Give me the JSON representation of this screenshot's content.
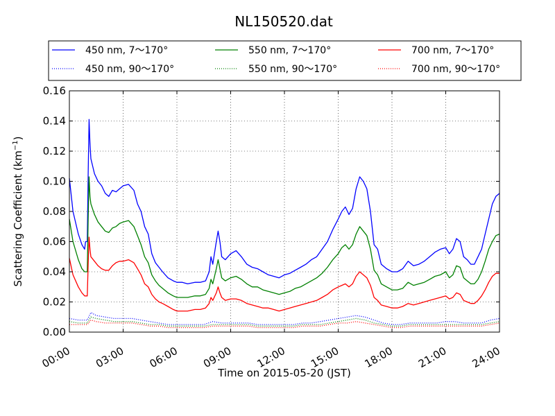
{
  "chart_data": {
    "type": "line",
    "title": "NL150520.dat",
    "xlabel": "Time on 2015-05-20 (JST)",
    "ylabel_main": "Scattering Coefficient (km",
    "ylabel_sup": "−1",
    "ylabel_close": ")",
    "xlim": [
      0,
      24
    ],
    "ylim": [
      0,
      0.16
    ],
    "x_ticks": [
      0,
      3,
      6,
      9,
      12,
      15,
      18,
      21,
      24
    ],
    "x_tick_labels": [
      "00:00",
      "03:00",
      "06:00",
      "09:00",
      "12:00",
      "15:00",
      "18:00",
      "21:00",
      "24:00"
    ],
    "y_ticks": [
      0,
      0.02,
      0.04,
      0.06,
      0.08,
      0.1,
      0.12,
      0.14,
      0.16
    ],
    "y_tick_labels": [
      "0.00",
      "0.02",
      "0.04",
      "0.06",
      "0.08",
      "0.10",
      "0.12",
      "0.14",
      "0.16"
    ],
    "grid": true,
    "legend_position": "top",
    "x_unit": "hours",
    "series": [
      {
        "name": "450 nm, 7～170°",
        "color": "#0000ff",
        "style": "solid",
        "x": [
          0.0,
          0.2,
          0.5,
          0.7,
          0.85,
          0.9,
          1.0,
          1.05,
          1.1,
          1.15,
          1.2,
          1.4,
          1.6,
          1.8,
          2.0,
          2.2,
          2.4,
          2.6,
          2.8,
          3.0,
          3.3,
          3.6,
          3.8,
          4.0,
          4.2,
          4.4,
          4.6,
          4.8,
          5.0,
          5.2,
          5.5,
          5.8,
          6.0,
          6.3,
          6.6,
          7.0,
          7.3,
          7.6,
          7.8,
          7.9,
          8.0,
          8.2,
          8.3,
          8.4,
          8.5,
          8.7,
          9.0,
          9.3,
          9.6,
          9.9,
          10.2,
          10.5,
          10.8,
          11.1,
          11.4,
          11.7,
          12.0,
          12.3,
          12.6,
          12.9,
          13.2,
          13.5,
          13.8,
          14.1,
          14.4,
          14.7,
          15.0,
          15.2,
          15.4,
          15.6,
          15.8,
          16.0,
          16.2,
          16.4,
          16.6,
          16.8,
          17.0,
          17.2,
          17.4,
          17.7,
          18.0,
          18.3,
          18.6,
          18.9,
          19.2,
          19.5,
          19.8,
          20.1,
          20.4,
          20.7,
          21.0,
          21.2,
          21.4,
          21.6,
          21.8,
          22.0,
          22.2,
          22.4,
          22.6,
          22.8,
          23.0,
          23.2,
          23.4,
          23.6,
          23.8,
          24.0
        ],
        "y": [
          0.102,
          0.08,
          0.065,
          0.058,
          0.055,
          0.06,
          0.06,
          0.105,
          0.141,
          0.125,
          0.115,
          0.105,
          0.1,
          0.097,
          0.092,
          0.09,
          0.094,
          0.093,
          0.095,
          0.097,
          0.098,
          0.094,
          0.085,
          0.08,
          0.07,
          0.065,
          0.052,
          0.046,
          0.043,
          0.04,
          0.036,
          0.034,
          0.033,
          0.033,
          0.032,
          0.033,
          0.033,
          0.034,
          0.04,
          0.05,
          0.045,
          0.06,
          0.067,
          0.06,
          0.05,
          0.048,
          0.052,
          0.054,
          0.05,
          0.045,
          0.043,
          0.042,
          0.04,
          0.038,
          0.037,
          0.036,
          0.038,
          0.039,
          0.041,
          0.043,
          0.045,
          0.048,
          0.05,
          0.055,
          0.06,
          0.068,
          0.075,
          0.08,
          0.083,
          0.078,
          0.082,
          0.095,
          0.103,
          0.1,
          0.095,
          0.08,
          0.058,
          0.055,
          0.045,
          0.042,
          0.04,
          0.04,
          0.042,
          0.047,
          0.044,
          0.045,
          0.047,
          0.05,
          0.053,
          0.055,
          0.056,
          0.052,
          0.055,
          0.062,
          0.06,
          0.05,
          0.048,
          0.045,
          0.045,
          0.05,
          0.055,
          0.065,
          0.075,
          0.085,
          0.09,
          0.092
        ]
      },
      {
        "name": "550 nm, 7～170°",
        "color": "#008000",
        "style": "solid",
        "x": [
          0.0,
          0.2,
          0.5,
          0.7,
          0.85,
          0.9,
          1.0,
          1.05,
          1.1,
          1.15,
          1.2,
          1.4,
          1.6,
          1.8,
          2.0,
          2.2,
          2.4,
          2.6,
          2.8,
          3.0,
          3.3,
          3.6,
          3.8,
          4.0,
          4.2,
          4.4,
          4.6,
          4.8,
          5.0,
          5.2,
          5.5,
          5.8,
          6.0,
          6.3,
          6.6,
          7.0,
          7.3,
          7.6,
          7.8,
          7.9,
          8.0,
          8.2,
          8.3,
          8.4,
          8.5,
          8.7,
          9.0,
          9.3,
          9.6,
          9.9,
          10.2,
          10.5,
          10.8,
          11.1,
          11.4,
          11.7,
          12.0,
          12.3,
          12.6,
          12.9,
          13.2,
          13.5,
          13.8,
          14.1,
          14.4,
          14.7,
          15.0,
          15.2,
          15.4,
          15.6,
          15.8,
          16.0,
          16.2,
          16.4,
          16.6,
          16.8,
          17.0,
          17.2,
          17.4,
          17.7,
          18.0,
          18.3,
          18.6,
          18.9,
          19.2,
          19.5,
          19.8,
          20.1,
          20.4,
          20.7,
          21.0,
          21.2,
          21.4,
          21.6,
          21.8,
          22.0,
          22.2,
          22.4,
          22.6,
          22.8,
          23.0,
          23.2,
          23.4,
          23.6,
          23.8,
          24.0
        ],
        "y": [
          0.075,
          0.06,
          0.048,
          0.042,
          0.04,
          0.04,
          0.04,
          0.075,
          0.103,
          0.09,
          0.085,
          0.078,
          0.073,
          0.07,
          0.067,
          0.066,
          0.069,
          0.07,
          0.072,
          0.073,
          0.074,
          0.07,
          0.064,
          0.058,
          0.05,
          0.046,
          0.038,
          0.034,
          0.031,
          0.029,
          0.026,
          0.024,
          0.023,
          0.023,
          0.023,
          0.024,
          0.024,
          0.025,
          0.029,
          0.035,
          0.032,
          0.042,
          0.048,
          0.042,
          0.036,
          0.034,
          0.036,
          0.037,
          0.035,
          0.032,
          0.03,
          0.03,
          0.028,
          0.027,
          0.026,
          0.025,
          0.026,
          0.027,
          0.029,
          0.03,
          0.032,
          0.034,
          0.036,
          0.039,
          0.043,
          0.048,
          0.052,
          0.056,
          0.058,
          0.055,
          0.058,
          0.065,
          0.07,
          0.067,
          0.064,
          0.055,
          0.041,
          0.038,
          0.032,
          0.03,
          0.028,
          0.028,
          0.029,
          0.033,
          0.031,
          0.032,
          0.033,
          0.035,
          0.037,
          0.038,
          0.04,
          0.036,
          0.038,
          0.044,
          0.043,
          0.036,
          0.034,
          0.032,
          0.032,
          0.035,
          0.04,
          0.047,
          0.055,
          0.06,
          0.064,
          0.065
        ]
      },
      {
        "name": "700 nm, 7～170°",
        "color": "#ff0000",
        "style": "solid",
        "x": [
          0.0,
          0.2,
          0.5,
          0.7,
          0.85,
          0.9,
          1.0,
          1.05,
          1.1,
          1.15,
          1.2,
          1.4,
          1.6,
          1.8,
          2.0,
          2.2,
          2.4,
          2.6,
          2.8,
          3.0,
          3.3,
          3.6,
          3.8,
          4.0,
          4.2,
          4.4,
          4.6,
          4.8,
          5.0,
          5.2,
          5.5,
          5.8,
          6.0,
          6.3,
          6.6,
          7.0,
          7.3,
          7.6,
          7.8,
          7.9,
          8.0,
          8.2,
          8.3,
          8.4,
          8.5,
          8.7,
          9.0,
          9.3,
          9.6,
          9.9,
          10.2,
          10.5,
          10.8,
          11.1,
          11.4,
          11.7,
          12.0,
          12.3,
          12.6,
          12.9,
          13.2,
          13.5,
          13.8,
          14.1,
          14.4,
          14.7,
          15.0,
          15.2,
          15.4,
          15.6,
          15.8,
          16.0,
          16.2,
          16.4,
          16.6,
          16.8,
          17.0,
          17.2,
          17.4,
          17.7,
          18.0,
          18.3,
          18.6,
          18.9,
          19.2,
          19.5,
          19.8,
          20.1,
          20.4,
          20.7,
          21.0,
          21.2,
          21.4,
          21.6,
          21.8,
          22.0,
          22.2,
          22.4,
          22.6,
          22.8,
          23.0,
          23.2,
          23.4,
          23.6,
          23.8,
          24.0
        ],
        "y": [
          0.049,
          0.038,
          0.03,
          0.026,
          0.024,
          0.024,
          0.024,
          0.045,
          0.063,
          0.055,
          0.05,
          0.047,
          0.044,
          0.042,
          0.041,
          0.041,
          0.044,
          0.046,
          0.047,
          0.047,
          0.048,
          0.046,
          0.042,
          0.038,
          0.032,
          0.03,
          0.025,
          0.022,
          0.02,
          0.019,
          0.017,
          0.015,
          0.014,
          0.014,
          0.014,
          0.015,
          0.015,
          0.016,
          0.019,
          0.023,
          0.021,
          0.026,
          0.03,
          0.026,
          0.023,
          0.021,
          0.022,
          0.022,
          0.021,
          0.019,
          0.018,
          0.017,
          0.016,
          0.016,
          0.015,
          0.014,
          0.015,
          0.016,
          0.017,
          0.018,
          0.019,
          0.02,
          0.021,
          0.023,
          0.025,
          0.028,
          0.03,
          0.031,
          0.032,
          0.03,
          0.032,
          0.037,
          0.04,
          0.038,
          0.036,
          0.031,
          0.023,
          0.021,
          0.018,
          0.017,
          0.016,
          0.016,
          0.017,
          0.019,
          0.018,
          0.019,
          0.02,
          0.021,
          0.022,
          0.023,
          0.024,
          0.022,
          0.023,
          0.026,
          0.025,
          0.021,
          0.02,
          0.019,
          0.019,
          0.021,
          0.024,
          0.028,
          0.033,
          0.037,
          0.039,
          0.039
        ]
      },
      {
        "name": "450 nm, 90～170°",
        "color": "#0000ff",
        "style": "dotted",
        "x": [
          0.0,
          0.5,
          1.0,
          1.2,
          1.5,
          2.0,
          2.5,
          3.0,
          3.5,
          4.0,
          4.5,
          5.0,
          5.5,
          6.0,
          6.5,
          7.0,
          7.5,
          8.0,
          8.5,
          9.0,
          9.5,
          10.0,
          10.5,
          11.0,
          11.5,
          12.0,
          12.5,
          13.0,
          13.5,
          14.0,
          14.5,
          15.0,
          15.5,
          16.0,
          16.5,
          17.0,
          17.5,
          18.0,
          18.5,
          19.0,
          19.5,
          20.0,
          20.5,
          21.0,
          21.5,
          22.0,
          22.5,
          23.0,
          23.5,
          24.0
        ],
        "y": [
          0.009,
          0.008,
          0.008,
          0.013,
          0.011,
          0.01,
          0.009,
          0.009,
          0.009,
          0.008,
          0.007,
          0.006,
          0.005,
          0.005,
          0.005,
          0.005,
          0.005,
          0.007,
          0.006,
          0.006,
          0.006,
          0.006,
          0.005,
          0.005,
          0.005,
          0.005,
          0.005,
          0.006,
          0.006,
          0.007,
          0.008,
          0.009,
          0.01,
          0.011,
          0.01,
          0.008,
          0.006,
          0.005,
          0.005,
          0.006,
          0.006,
          0.006,
          0.006,
          0.007,
          0.007,
          0.006,
          0.006,
          0.006,
          0.008,
          0.009
        ]
      },
      {
        "name": "550 nm, 90～170°",
        "color": "#008000",
        "style": "dotted",
        "x": [
          0.0,
          0.5,
          1.0,
          1.2,
          1.5,
          2.0,
          2.5,
          3.0,
          3.5,
          4.0,
          4.5,
          5.0,
          5.5,
          6.0,
          6.5,
          7.0,
          7.5,
          8.0,
          8.5,
          9.0,
          9.5,
          10.0,
          10.5,
          11.0,
          11.5,
          12.0,
          12.5,
          13.0,
          13.5,
          14.0,
          14.5,
          15.0,
          15.5,
          16.0,
          16.5,
          17.0,
          17.5,
          18.0,
          18.5,
          19.0,
          19.5,
          20.0,
          20.5,
          21.0,
          21.5,
          22.0,
          22.5,
          23.0,
          23.5,
          24.0
        ],
        "y": [
          0.007,
          0.006,
          0.006,
          0.01,
          0.009,
          0.008,
          0.007,
          0.007,
          0.007,
          0.006,
          0.005,
          0.005,
          0.004,
          0.004,
          0.004,
          0.004,
          0.004,
          0.005,
          0.005,
          0.005,
          0.005,
          0.005,
          0.004,
          0.004,
          0.004,
          0.004,
          0.004,
          0.005,
          0.005,
          0.005,
          0.006,
          0.007,
          0.008,
          0.009,
          0.008,
          0.006,
          0.005,
          0.004,
          0.004,
          0.005,
          0.005,
          0.005,
          0.005,
          0.005,
          0.005,
          0.005,
          0.005,
          0.005,
          0.006,
          0.007
        ]
      },
      {
        "name": "700 nm, 90～170°",
        "color": "#ff0000",
        "style": "dotted",
        "x": [
          0.0,
          0.5,
          1.0,
          1.2,
          1.5,
          2.0,
          2.5,
          3.0,
          3.5,
          4.0,
          4.5,
          5.0,
          5.5,
          6.0,
          6.5,
          7.0,
          7.5,
          8.0,
          8.5,
          9.0,
          9.5,
          10.0,
          10.5,
          11.0,
          11.5,
          12.0,
          12.5,
          13.0,
          13.5,
          14.0,
          14.5,
          15.0,
          15.5,
          16.0,
          16.5,
          17.0,
          17.5,
          18.0,
          18.5,
          19.0,
          19.5,
          20.0,
          20.5,
          21.0,
          21.5,
          22.0,
          22.5,
          23.0,
          23.5,
          24.0
        ],
        "y": [
          0.005,
          0.005,
          0.005,
          0.008,
          0.007,
          0.006,
          0.006,
          0.006,
          0.006,
          0.005,
          0.004,
          0.004,
          0.003,
          0.003,
          0.003,
          0.003,
          0.003,
          0.004,
          0.004,
          0.004,
          0.004,
          0.004,
          0.003,
          0.003,
          0.003,
          0.003,
          0.003,
          0.004,
          0.004,
          0.004,
          0.005,
          0.006,
          0.006,
          0.007,
          0.006,
          0.005,
          0.004,
          0.003,
          0.003,
          0.004,
          0.004,
          0.004,
          0.004,
          0.004,
          0.004,
          0.004,
          0.004,
          0.004,
          0.005,
          0.006
        ]
      }
    ]
  }
}
